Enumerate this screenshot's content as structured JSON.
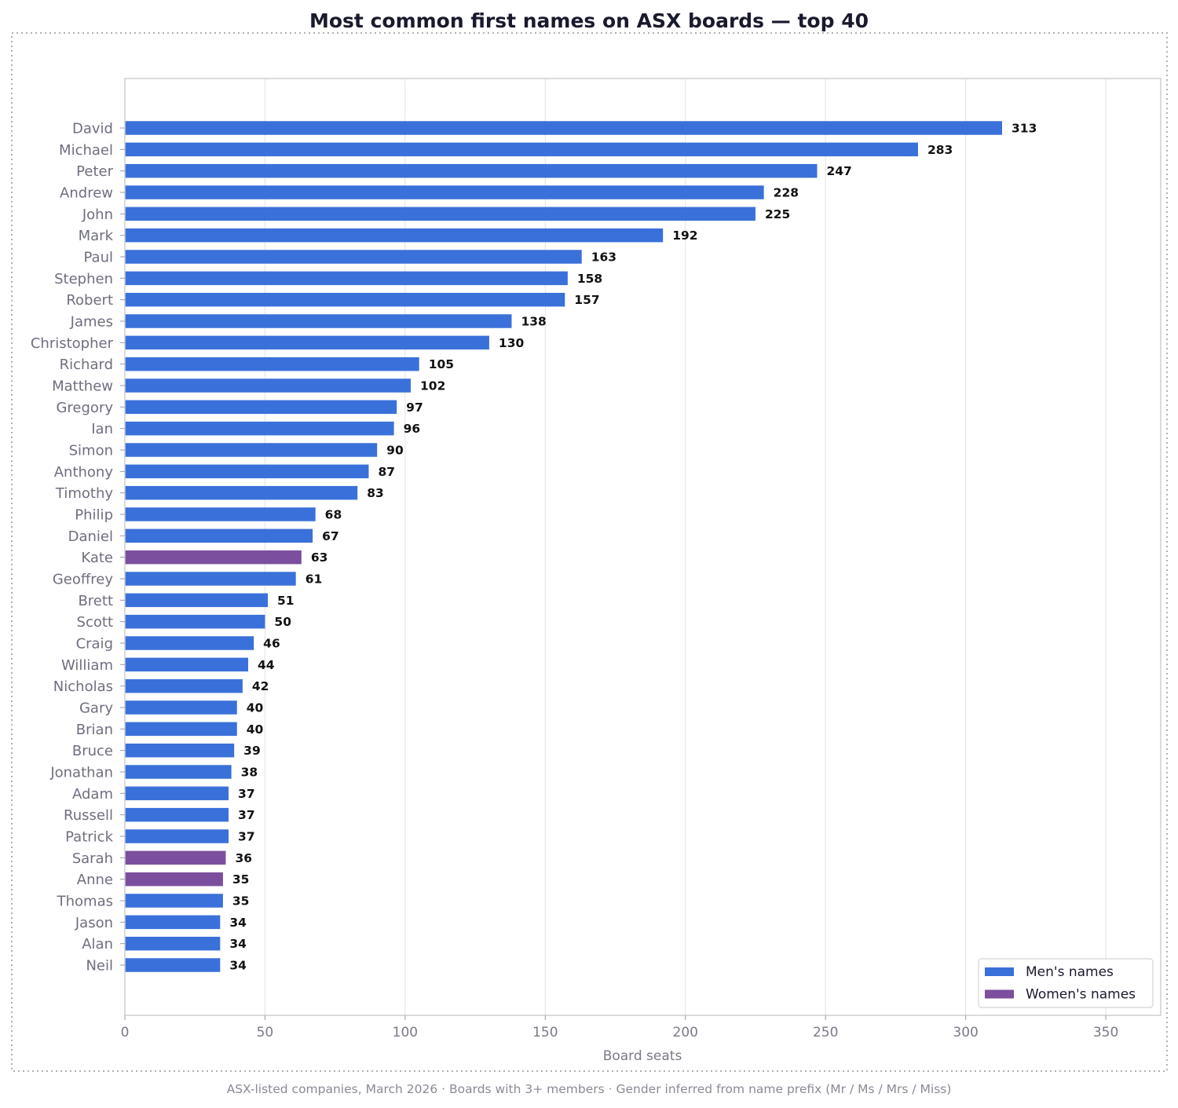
{
  "chart_data": {
    "type": "bar",
    "orientation": "horizontal",
    "title": "Most common first names on ASX boards  —  top 40",
    "xlabel": "Board seats",
    "ylabel": "",
    "footnote": "ASX-listed companies, March 2026  ·  Boards with 3+ members  ·  Gender inferred from name prefix (Mr / Ms / Mrs / Miss)",
    "xlim": [
      0,
      369.6
    ],
    "xticks": [
      0,
      50,
      100,
      150,
      200,
      250,
      300,
      350
    ],
    "grid": "vertical",
    "legend_position": "bottom-right",
    "colors": {
      "men": "#3a70d9",
      "women": "#7b4f9e"
    },
    "legend": [
      {
        "key": "men",
        "label": "Men's names"
      },
      {
        "key": "women",
        "label": "Women's names"
      }
    ],
    "categories": [
      "David",
      "Michael",
      "Peter",
      "Andrew",
      "John",
      "Mark",
      "Paul",
      "Stephen",
      "Robert",
      "James",
      "Christopher",
      "Richard",
      "Matthew",
      "Gregory",
      "Ian",
      "Simon",
      "Anthony",
      "Timothy",
      "Philip",
      "Daniel",
      "Kate",
      "Geoffrey",
      "Brett",
      "Scott",
      "Craig",
      "William",
      "Nicholas",
      "Gary",
      "Brian",
      "Bruce",
      "Jonathan",
      "Adam",
      "Russell",
      "Patrick",
      "Sarah",
      "Anne",
      "Thomas",
      "Jason",
      "Alan",
      "Neil"
    ],
    "values": [
      313,
      283,
      247,
      228,
      225,
      192,
      163,
      158,
      157,
      138,
      130,
      105,
      102,
      97,
      96,
      90,
      87,
      83,
      68,
      67,
      63,
      61,
      51,
      50,
      46,
      44,
      42,
      40,
      40,
      39,
      38,
      37,
      37,
      37,
      36,
      35,
      35,
      34,
      34,
      34
    ],
    "gender": [
      "men",
      "men",
      "men",
      "men",
      "men",
      "men",
      "men",
      "men",
      "men",
      "men",
      "men",
      "men",
      "men",
      "men",
      "men",
      "men",
      "men",
      "men",
      "men",
      "men",
      "women",
      "men",
      "men",
      "men",
      "men",
      "men",
      "men",
      "men",
      "men",
      "men",
      "men",
      "men",
      "men",
      "men",
      "women",
      "women",
      "men",
      "men",
      "men",
      "men"
    ]
  }
}
